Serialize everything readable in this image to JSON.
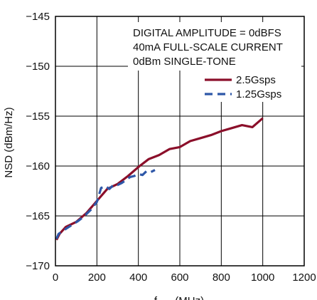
{
  "chart_data": {
    "type": "line",
    "xlabel": "fOUT (MHz)",
    "ylabel": "NSD (dBm/Hz)",
    "xlim": [
      0,
      1200
    ],
    "ylim": [
      -170,
      -145
    ],
    "xticks": [
      0,
      200,
      400,
      600,
      800,
      1000,
      1200
    ],
    "yticks": [
      -170,
      -165,
      -160,
      -155,
      -150,
      -145
    ],
    "xtick_labels": [
      "0",
      "200",
      "400",
      "600",
      "800",
      "1000",
      "1200"
    ],
    "ytick_labels": [
      "−170",
      "−165",
      "−160",
      "−155",
      "−150",
      "−145"
    ],
    "grid": true,
    "legend_position": "top-right",
    "annotations": [
      "DIGITAL AMPLITUDE = 0dBFS",
      "40mA FULL-SCALE CURRENT",
      "0dBm SINGLE-TONE"
    ],
    "series": [
      {
        "name": "2.5Gsps",
        "color": "#8b0f2a",
        "dash": "solid",
        "x": [
          5,
          20,
          50,
          100,
          150,
          200,
          250,
          300,
          350,
          400,
          450,
          500,
          550,
          600,
          650,
          700,
          750,
          800,
          850,
          900,
          950,
          1000
        ],
        "y": [
          -167.4,
          -166.8,
          -166.1,
          -165.6,
          -164.7,
          -163.5,
          -162.3,
          -161.8,
          -161.0,
          -160.1,
          -159.3,
          -158.9,
          -158.3,
          -158.1,
          -157.5,
          -157.2,
          -156.9,
          -156.5,
          -156.2,
          -155.9,
          -156.1,
          -155.2
        ]
      },
      {
        "name": "1.25Gsps",
        "color": "#2e57a8",
        "dash": "dashed",
        "x": [
          5,
          15,
          30,
          50,
          80,
          110,
          140,
          170,
          200,
          220,
          240,
          260,
          280,
          300,
          320,
          340,
          360,
          380,
          400,
          420,
          440,
          460,
          480
        ],
        "y": [
          -167.3,
          -166.8,
          -166.6,
          -166.3,
          -165.9,
          -165.5,
          -165.0,
          -164.4,
          -163.6,
          -162.2,
          -162.0,
          -162.3,
          -161.9,
          -161.9,
          -161.7,
          -161.4,
          -161.1,
          -161.0,
          -160.8,
          -160.9,
          -160.5,
          -160.6,
          -160.4
        ]
      }
    ]
  }
}
